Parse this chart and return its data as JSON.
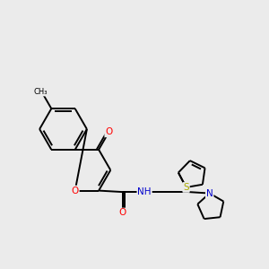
{
  "bg_color": "#ebebeb",
  "bond_color": "#000000",
  "atom_colors": {
    "O": "#ff0000",
    "N": "#0000cc",
    "S": "#aaaa00",
    "C": "#000000",
    "H": "#000000"
  },
  "lw": 1.4,
  "fontsize": 7.5
}
